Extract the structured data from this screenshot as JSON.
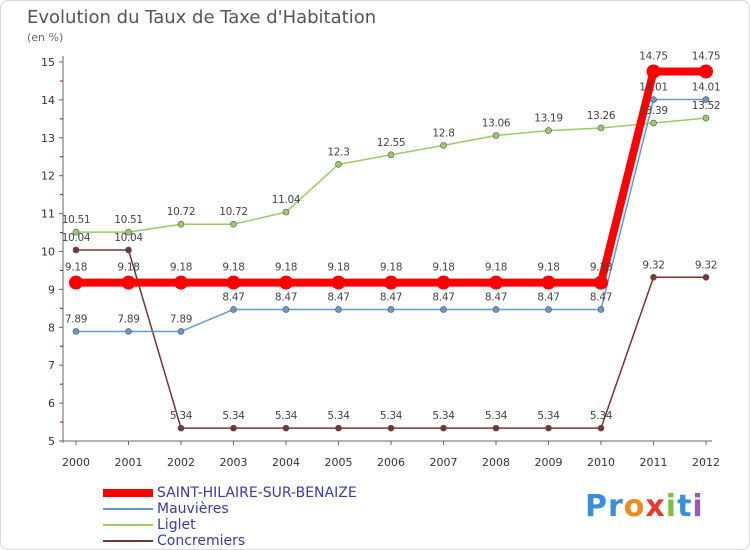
{
  "title": "Evolution du Taux de Taxe d'Habitation",
  "unit_label": "(en %)",
  "logo_text": "Proxiti",
  "chart_data": {
    "type": "line",
    "title": "Evolution du Taux de Taxe d'Habitation",
    "ylabel": "(en %)",
    "xlabel": "",
    "ylim": [
      5,
      15
    ],
    "grid": false,
    "legend": "bottom-left",
    "categories": [
      "2000",
      "2001",
      "2002",
      "2003",
      "2004",
      "2005",
      "2006",
      "2007",
      "2008",
      "2009",
      "2010",
      "2011",
      "2012"
    ],
    "y_ticks": [
      "5",
      "6",
      "7",
      "8",
      "9",
      "10",
      "11",
      "12",
      "13",
      "14",
      "15"
    ],
    "series": [
      {
        "name": "SAINT-HILAIRE-SUR-BENAIZE",
        "color": "#ff0000",
        "values": [
          9.18,
          9.18,
          9.18,
          9.18,
          9.18,
          9.18,
          9.18,
          9.18,
          9.18,
          9.18,
          9.18,
          14.75,
          14.75
        ],
        "labels": [
          "9.18",
          "9.18",
          "9.18",
          "9.18",
          "9.18",
          "9.18",
          "9.18",
          "9.18",
          "9.18",
          "9.18",
          "9.18",
          "14.75",
          "14.75"
        ]
      },
      {
        "name": "Mauvières",
        "color": "#6699cc",
        "values": [
          7.89,
          7.89,
          7.89,
          8.47,
          8.47,
          8.47,
          8.47,
          8.47,
          8.47,
          8.47,
          8.47,
          14.01,
          14.01
        ],
        "labels": [
          "7.89",
          "7.89",
          "7.89",
          "8.47",
          "8.47",
          "8.47",
          "8.47",
          "8.47",
          "8.47",
          "8.47",
          "8.47",
          "14.01",
          "14.01"
        ]
      },
      {
        "name": "Liglet",
        "color": "#99cc66",
        "values": [
          10.51,
          10.51,
          10.72,
          10.72,
          11.04,
          12.3,
          12.55,
          12.8,
          13.06,
          13.19,
          13.26,
          13.39,
          13.52
        ],
        "labels": [
          "10.51",
          "10.51",
          "10.72",
          "10.72",
          "11.04",
          "12.3",
          "12.55",
          "12.8",
          "13.06",
          "13.19",
          "13.26",
          "13.39",
          "13.52"
        ]
      },
      {
        "name": "Concremiers",
        "color": "#7a3333",
        "values": [
          10.04,
          10.04,
          5.34,
          5.34,
          5.34,
          5.34,
          5.34,
          5.34,
          5.34,
          5.34,
          5.34,
          9.32,
          9.32
        ],
        "labels": [
          "10.04",
          "10.04",
          "5.34",
          "5.34",
          "5.34",
          "5.34",
          "5.34",
          "5.34",
          "5.34",
          "5.34",
          "5.34",
          "9.32",
          "9.32"
        ]
      }
    ]
  }
}
